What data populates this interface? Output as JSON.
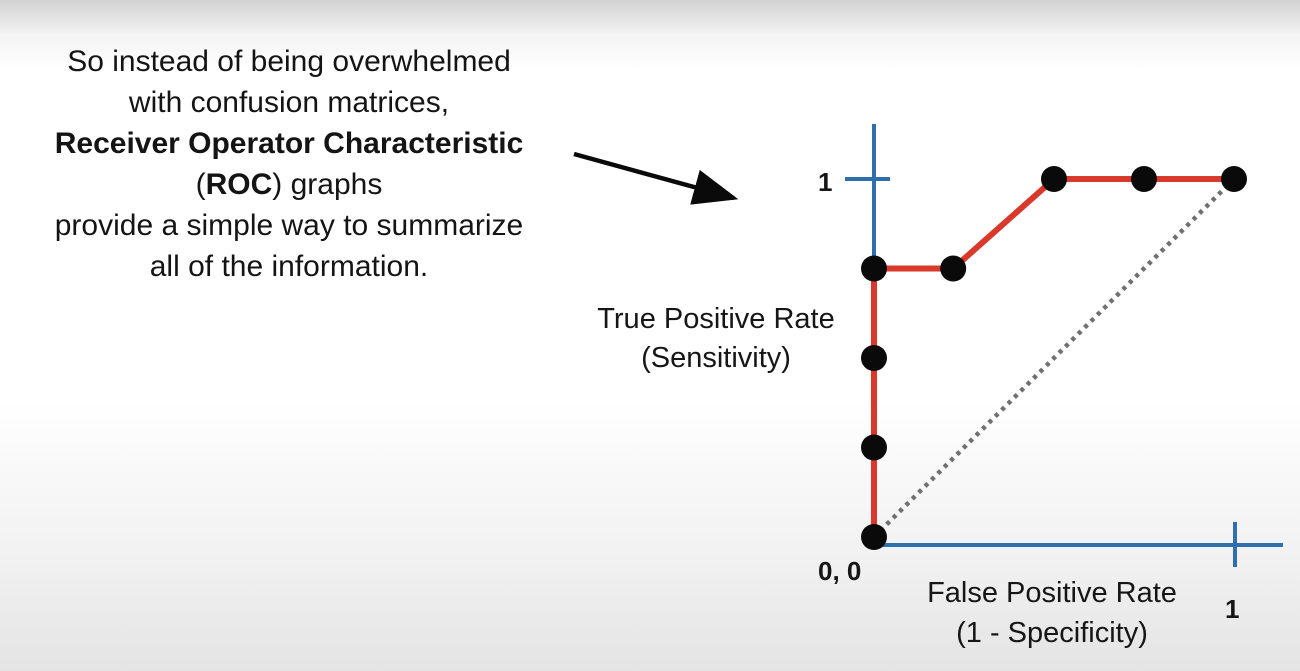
{
  "caption": {
    "line1": "So instead of being overwhelmed",
    "line2": "with confusion matrices,",
    "line3": "Receiver Operator Characteristic",
    "line4_bold": "ROC",
    "line4_open": "(",
    "line4_rest": ") graphs",
    "line5": "provide a simple way to summarize",
    "line6": "all of the information."
  },
  "colors": {
    "axis": "#2f6fad",
    "curve": "#d9392b",
    "point": "#0a0a0a",
    "reference": "#707070"
  },
  "chart_data": {
    "type": "line",
    "xlabel": [
      "False Positive Rate",
      "(1 - Specificity)"
    ],
    "ylabel": [
      "True Positive Rate",
      "(Sensitivity)"
    ],
    "tick_labels": {
      "origin": "0, 0",
      "x_one": "1",
      "y_one": "1"
    },
    "xlim": [
      0,
      1
    ],
    "ylim": [
      0,
      1
    ],
    "grid": false,
    "points": [
      {
        "x": 0,
        "y": 0
      },
      {
        "x": 0,
        "y": 0.25
      },
      {
        "x": 0,
        "y": 0.5
      },
      {
        "x": 0,
        "y": 0.75
      },
      {
        "x": 0.22,
        "y": 0.75
      },
      {
        "x": 0.5,
        "y": 1
      },
      {
        "x": 0.75,
        "y": 1
      },
      {
        "x": 1,
        "y": 1
      }
    ],
    "curve": [
      {
        "x": 0,
        "y": 0
      },
      {
        "x": 0,
        "y": 0.75
      },
      {
        "x": 0.22,
        "y": 0.75
      },
      {
        "x": 0.5,
        "y": 1
      },
      {
        "x": 1,
        "y": 1
      }
    ],
    "reference_line": [
      {
        "x": 0,
        "y": 0
      },
      {
        "x": 1,
        "y": 1
      }
    ]
  }
}
